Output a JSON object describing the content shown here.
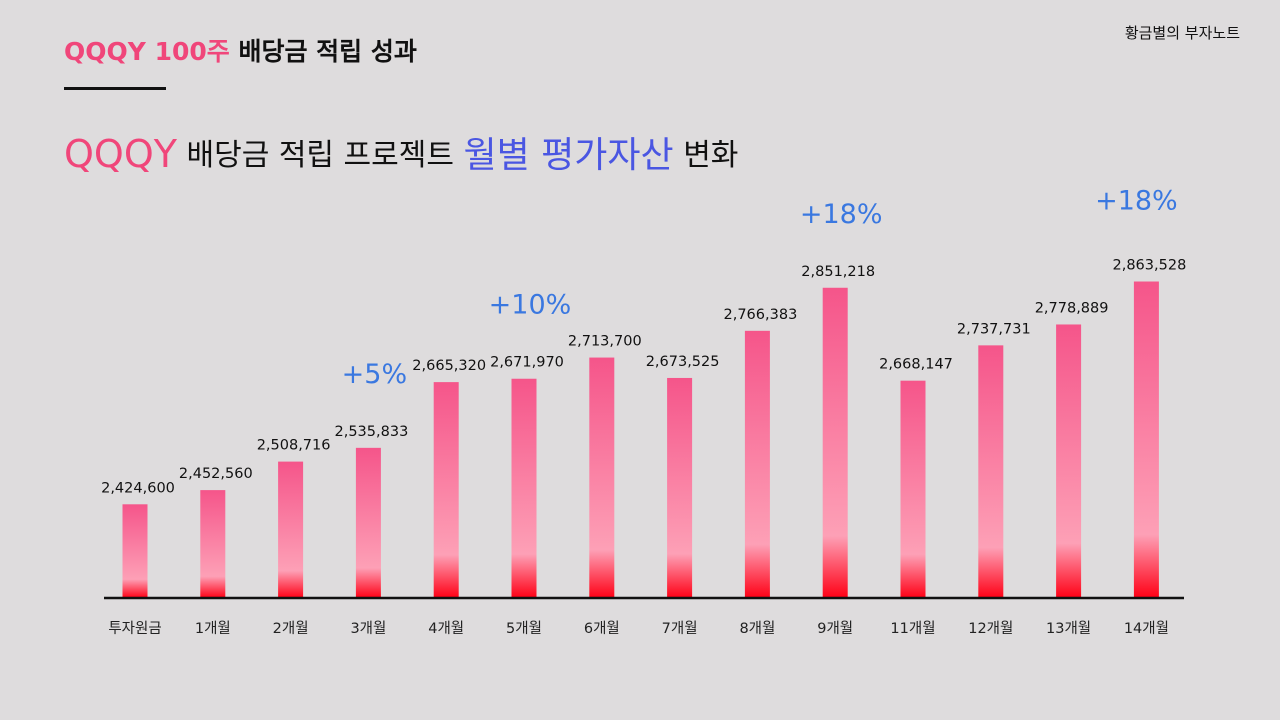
{
  "brand": "황금별의 부자노트",
  "header": {
    "ticker": "QQQY 100주",
    "rest": " 배당금 적립 성과"
  },
  "subtitle": {
    "ticker": "QQQY",
    "part1": " 배당금 적립 프로젝트 ",
    "accent": "월별 평가자산",
    "part2": " 변화"
  },
  "colors": {
    "bar_top": "#f5558a",
    "bar_mid": "#fda0b6",
    "bar_bottom": "#ff0015",
    "pct_label": "#3a78e0",
    "accent": "#4a56e2",
    "ticker": "#f0467a"
  },
  "chart_data": {
    "type": "bar",
    "categories": [
      "투자원금",
      "1개월",
      "2개월",
      "3개월",
      "4개월",
      "5개월",
      "6개월",
      "7개월",
      "8개월",
      "9개월",
      "11개월",
      "12개월",
      "13개월",
      "14개월"
    ],
    "values": [
      2424600,
      2452560,
      2508716,
      2535833,
      2665320,
      2671970,
      2713700,
      2673525,
      2766383,
      2851218,
      2668147,
      2737731,
      2778889,
      2863528
    ],
    "value_labels": [
      "2,424,600",
      "2,452,560",
      "2,508,716",
      "2,535,833",
      "2,665,320",
      "2,671,970",
      "2,713,700",
      "2,673,525",
      "2,766,383",
      "2,851,218",
      "2,668,147",
      "2,737,731",
      "2,778,889",
      "2,863,528"
    ],
    "ylim": [
      2240000,
      2900000
    ],
    "annotations": [
      {
        "index": 3,
        "text": "+5%"
      },
      {
        "index": 5,
        "text": "+10%"
      },
      {
        "index": 9,
        "text": "+18%"
      },
      {
        "index": 13,
        "text": "+18%"
      }
    ],
    "title": "",
    "xlabel": "",
    "ylabel": "",
    "grid": false,
    "legend": "none"
  }
}
